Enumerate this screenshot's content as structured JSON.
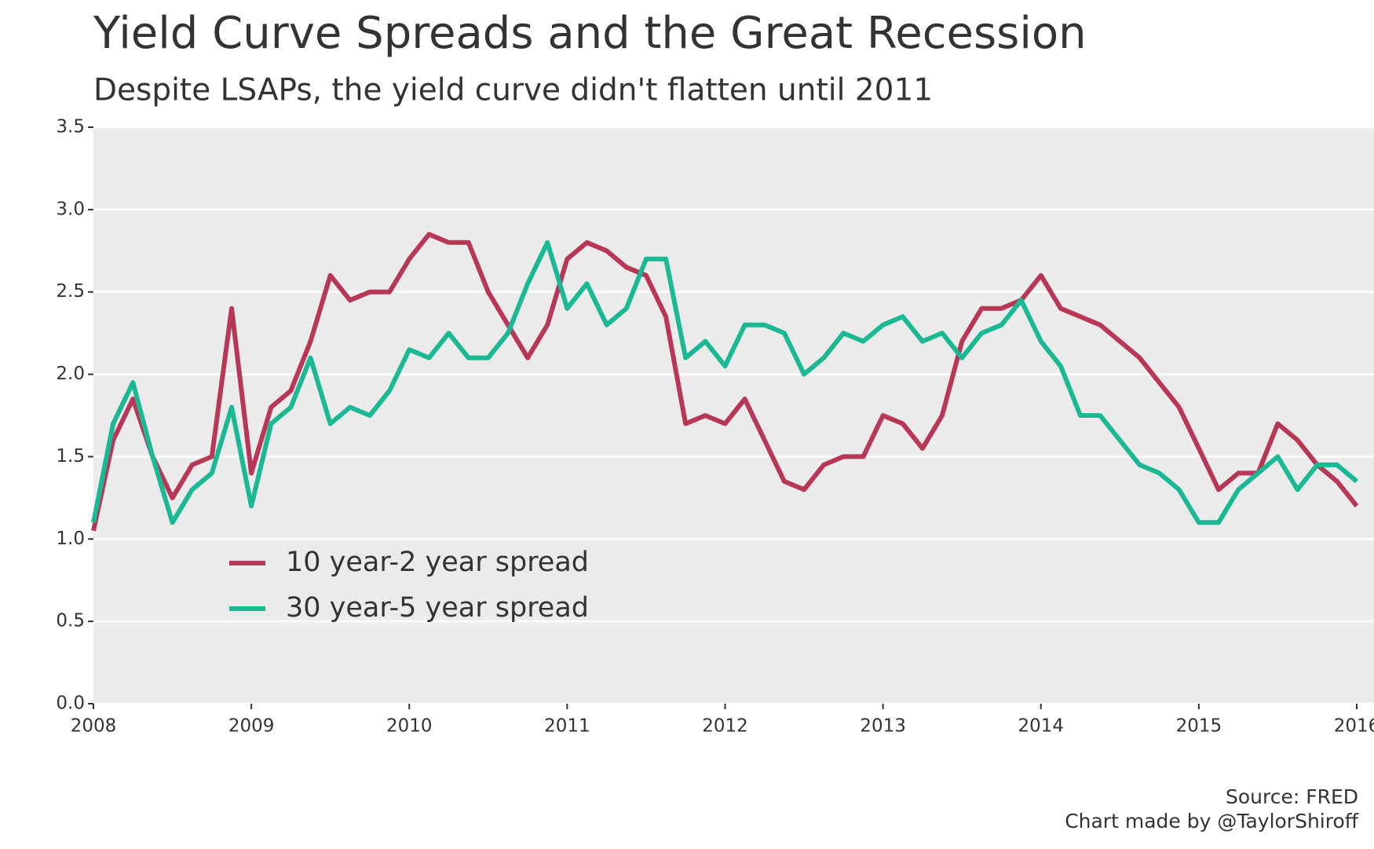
{
  "chart_data": {
    "type": "line",
    "title": "Yield Curve Spreads and the Great Recession",
    "subtitle": "Despite LSAPs, the yield curve didn't flatten until 2011",
    "caption": [
      "Source: FRED",
      "Chart made by @TaylorShiroff"
    ],
    "x": [
      2008,
      2008.125,
      2008.25,
      2008.375,
      2008.5,
      2008.625,
      2008.75,
      2008.875,
      2009,
      2009.125,
      2009.25,
      2009.375,
      2009.5,
      2009.625,
      2009.75,
      2009.875,
      2010,
      2010.125,
      2010.25,
      2010.375,
      2010.5,
      2010.625,
      2010.75,
      2010.875,
      2011,
      2011.125,
      2011.25,
      2011.375,
      2011.5,
      2011.625,
      2011.75,
      2011.875,
      2012,
      2012.125,
      2012.25,
      2012.375,
      2012.5,
      2012.625,
      2012.75,
      2012.875,
      2013,
      2013.125,
      2013.25,
      2013.375,
      2013.5,
      2013.625,
      2013.75,
      2013.875,
      2014,
      2014.125,
      2014.25,
      2014.375,
      2014.5,
      2014.625,
      2014.75,
      2014.875,
      2015,
      2015.125,
      2015.25,
      2015.375,
      2015.5,
      2015.625,
      2015.75,
      2015.875,
      2016
    ],
    "series": [
      {
        "name": "10 year-2 year spread",
        "color": "#b83656",
        "values": [
          1.05,
          1.6,
          1.85,
          1.5,
          1.25,
          1.45,
          1.5,
          2.4,
          1.4,
          1.8,
          1.9,
          2.2,
          2.6,
          2.45,
          2.5,
          2.5,
          2.7,
          2.85,
          2.8,
          2.8,
          2.5,
          2.3,
          2.1,
          2.3,
          2.7,
          2.8,
          2.75,
          2.65,
          2.6,
          2.35,
          1.7,
          1.75,
          1.7,
          1.85,
          1.6,
          1.35,
          1.3,
          1.45,
          1.5,
          1.5,
          1.75,
          1.7,
          1.55,
          1.75,
          2.2,
          2.4,
          2.4,
          2.45,
          2.6,
          2.4,
          2.35,
          2.3,
          2.2,
          2.1,
          1.95,
          1.8,
          1.55,
          1.3,
          1.4,
          1.4,
          1.7,
          1.6,
          1.45,
          1.35,
          1.2
        ]
      },
      {
        "name": "30 year-5 year spread",
        "color": "#1ab893",
        "values": [
          1.1,
          1.7,
          1.95,
          1.5,
          1.1,
          1.3,
          1.4,
          1.8,
          1.2,
          1.7,
          1.8,
          2.1,
          1.7,
          1.8,
          1.75,
          1.9,
          2.15,
          2.1,
          2.25,
          2.1,
          2.1,
          2.25,
          2.55,
          2.8,
          2.4,
          2.55,
          2.3,
          2.4,
          2.7,
          2.7,
          2.1,
          2.2,
          2.05,
          2.3,
          2.3,
          2.25,
          2.0,
          2.1,
          2.25,
          2.2,
          2.3,
          2.35,
          2.2,
          2.25,
          2.1,
          2.25,
          2.3,
          2.45,
          2.2,
          2.05,
          1.75,
          1.75,
          1.6,
          1.45,
          1.4,
          1.3,
          1.1,
          1.1,
          1.3,
          1.4,
          1.5,
          1.3,
          1.45,
          1.45,
          1.35
        ]
      }
    ],
    "xlim": [
      2008,
      2016
    ],
    "xticks": [
      2008,
      2009,
      2010,
      2011,
      2012,
      2013,
      2014,
      2015,
      2016
    ],
    "ylim": [
      0,
      3.5
    ],
    "yticks": [
      {
        "value": 0,
        "label": "0.0"
      },
      0.5,
      {
        "value": 1,
        "label": "1.0"
      },
      1.5,
      {
        "value": 2,
        "label": "2.0"
      },
      2.5,
      {
        "value": 3,
        "label": "3.0"
      },
      3.5
    ],
    "grid": true,
    "legend": "lower left"
  }
}
